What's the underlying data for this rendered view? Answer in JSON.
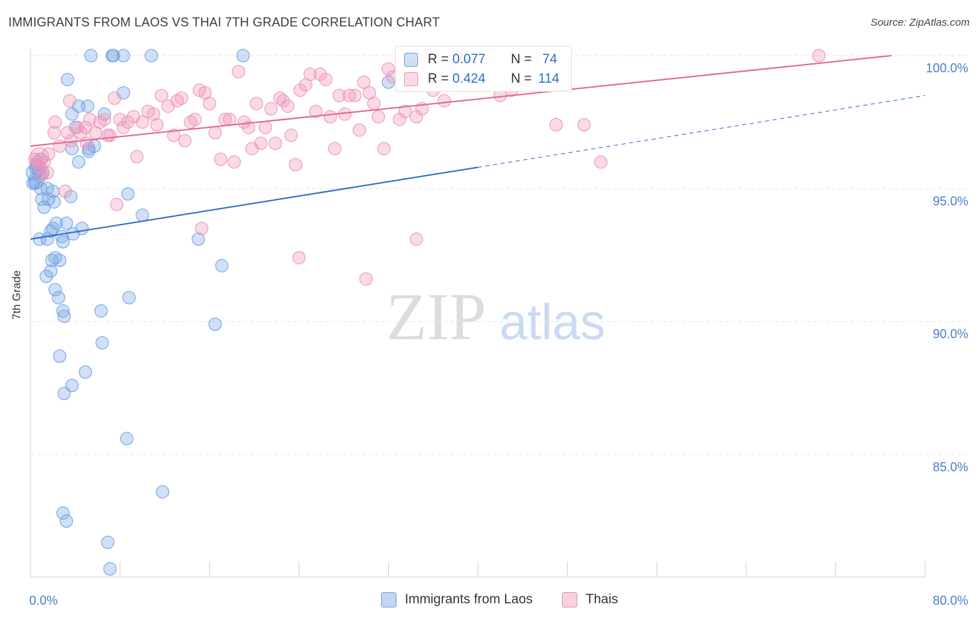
{
  "title": "IMMIGRANTS FROM LAOS VS THAI 7TH GRADE CORRELATION CHART",
  "source": "Source: ZipAtlas.com",
  "watermark": {
    "zip": "ZIP",
    "atlas": "atlas"
  },
  "colors": {
    "laos_fill": "rgba(120,165,230,0.35)",
    "laos_stroke": "#6f9fe0",
    "laos_line": "#2e6fc4",
    "thai_fill": "rgba(240,150,185,0.35)",
    "thai_stroke": "#ee8fb3",
    "thai_line": "#e2688f",
    "axis_text": "#4a7fc9"
  },
  "legend_top": [
    {
      "r_label": "R = ",
      "r_value": "0.077",
      "n_label": "N = ",
      "n_value": "74"
    },
    {
      "r_label": "R = ",
      "r_value": "0.424",
      "n_label": "N = ",
      "n_value": "114"
    }
  ],
  "legend_bottom": [
    "Immigrants from Laos",
    "Thais"
  ],
  "chart_data": {
    "type": "scatter",
    "title": "IMMIGRANTS FROM LAOS VS THAI 7TH GRADE CORRELATION CHART",
    "xlabel": "",
    "ylabel": "7th Grade",
    "xlim": [
      0,
      80
    ],
    "ylim": [
      80.5,
      100.5
    ],
    "x_ticks": [
      "0.0%",
      "80.0%"
    ],
    "y_ticks": [
      {
        "value": 100,
        "label": "100.0%"
      },
      {
        "value": 95,
        "label": "95.0%"
      },
      {
        "value": 90,
        "label": "90.0%"
      },
      {
        "value": 85,
        "label": "85.0%"
      }
    ],
    "series": [
      {
        "name": "Immigrants from Laos",
        "R": 0.077,
        "N": 74,
        "trend": {
          "x": [
            0,
            40
          ],
          "y": [
            93.1,
            95.8
          ],
          "dashed_to": {
            "x": 80,
            "y": 98.5
          }
        },
        "points": [
          [
            0.3,
            95.6
          ],
          [
            0.5,
            95.3
          ],
          [
            0.6,
            95.8
          ],
          [
            0.8,
            95.5
          ],
          [
            0.4,
            95.2
          ],
          [
            0.7,
            95.7
          ],
          [
            0.9,
            95.0
          ],
          [
            1.0,
            94.6
          ],
          [
            1.2,
            94.3
          ],
          [
            1.5,
            95.0
          ],
          [
            1.6,
            94.6
          ],
          [
            2.0,
            94.9
          ],
          [
            2.1,
            94.5
          ],
          [
            2.3,
            93.7
          ],
          [
            0.8,
            93.1
          ],
          [
            1.5,
            93.1
          ],
          [
            1.8,
            93.4
          ],
          [
            2.0,
            93.5
          ],
          [
            2.8,
            93.2
          ],
          [
            3.2,
            93.7
          ],
          [
            3.8,
            93.3
          ],
          [
            4.6,
            93.5
          ],
          [
            2.9,
            93.0
          ],
          [
            1.9,
            92.3
          ],
          [
            2.6,
            92.3
          ],
          [
            2.2,
            92.4
          ],
          [
            1.4,
            91.7
          ],
          [
            1.8,
            91.9
          ],
          [
            2.5,
            90.9
          ],
          [
            2.2,
            91.2
          ],
          [
            2.9,
            90.4
          ],
          [
            3.0,
            90.2
          ],
          [
            6.3,
            90.4
          ],
          [
            8.8,
            90.9
          ],
          [
            6.4,
            89.2
          ],
          [
            2.6,
            88.7
          ],
          [
            4.9,
            88.1
          ],
          [
            3.7,
            87.6
          ],
          [
            3.0,
            87.3
          ],
          [
            8.6,
            85.6
          ],
          [
            11.8,
            83.6
          ],
          [
            2.9,
            82.8
          ],
          [
            3.2,
            82.5
          ],
          [
            6.9,
            81.7
          ],
          [
            7.1,
            80.7
          ],
          [
            3.3,
            99.1
          ],
          [
            4.3,
            98.1
          ],
          [
            3.7,
            97.8
          ],
          [
            5.1,
            98.1
          ],
          [
            6.6,
            97.8
          ],
          [
            8.3,
            98.6
          ],
          [
            5.7,
            96.6
          ],
          [
            5.2,
            96.5
          ],
          [
            4.3,
            96.0
          ],
          [
            3.7,
            96.5
          ],
          [
            5.2,
            96.4
          ],
          [
            8.7,
            94.8
          ],
          [
            10.0,
            94.0
          ],
          [
            15.0,
            93.1
          ],
          [
            17.1,
            92.1
          ],
          [
            16.5,
            89.9
          ],
          [
            5.4,
            100.0
          ],
          [
            7.3,
            100.0
          ],
          [
            7.4,
            100.0
          ],
          [
            8.3,
            100.0
          ],
          [
            10.8,
            100.0
          ],
          [
            19.0,
            100.0
          ],
          [
            32.0,
            99.0
          ],
          [
            0.5,
            95.9
          ],
          [
            1.1,
            95.6
          ],
          [
            0.2,
            95.2
          ],
          [
            3.6,
            94.7
          ],
          [
            0.9,
            96.1
          ],
          [
            4.0,
            97.3
          ]
        ]
      },
      {
        "name": "Thais",
        "R": 0.424,
        "N": 114,
        "trend": {
          "x": [
            0,
            77
          ],
          "y": [
            96.6,
            100.0
          ]
        },
        "points": [
          [
            0.8,
            96.2
          ],
          [
            1.2,
            96.0
          ],
          [
            1.5,
            95.6
          ],
          [
            2.1,
            97.1
          ],
          [
            2.6,
            96.6
          ],
          [
            3.3,
            97.1
          ],
          [
            3.6,
            96.8
          ],
          [
            4.2,
            97.3
          ],
          [
            4.5,
            97.1
          ],
          [
            5.0,
            96.7
          ],
          [
            5.3,
            97.6
          ],
          [
            5.8,
            97.1
          ],
          [
            6.2,
            97.5
          ],
          [
            6.6,
            97.6
          ],
          [
            7.1,
            97.0
          ],
          [
            7.5,
            98.4
          ],
          [
            8.0,
            97.6
          ],
          [
            8.3,
            97.3
          ],
          [
            8.7,
            97.5
          ],
          [
            9.2,
            97.7
          ],
          [
            9.5,
            96.2
          ],
          [
            10.0,
            97.5
          ],
          [
            10.5,
            97.9
          ],
          [
            11.0,
            97.8
          ],
          [
            11.3,
            97.4
          ],
          [
            11.7,
            98.5
          ],
          [
            12.3,
            98.1
          ],
          [
            12.8,
            97.0
          ],
          [
            13.1,
            98.3
          ],
          [
            13.5,
            98.4
          ],
          [
            13.8,
            96.8
          ],
          [
            14.3,
            97.5
          ],
          [
            14.7,
            97.6
          ],
          [
            15.1,
            98.7
          ],
          [
            15.6,
            98.6
          ],
          [
            16.0,
            98.2
          ],
          [
            16.5,
            97.1
          ],
          [
            17.0,
            96.1
          ],
          [
            17.4,
            97.6
          ],
          [
            17.8,
            97.6
          ],
          [
            18.2,
            96.0
          ],
          [
            18.6,
            99.4
          ],
          [
            19.1,
            97.5
          ],
          [
            19.5,
            97.3
          ],
          [
            19.8,
            96.5
          ],
          [
            20.2,
            98.2
          ],
          [
            20.6,
            96.7
          ],
          [
            21.0,
            97.3
          ],
          [
            21.5,
            98.0
          ],
          [
            21.9,
            96.7
          ],
          [
            22.3,
            98.4
          ],
          [
            22.6,
            98.3
          ],
          [
            23.0,
            98.1
          ],
          [
            23.3,
            97.0
          ],
          [
            23.7,
            95.9
          ],
          [
            24.1,
            98.7
          ],
          [
            24.6,
            98.9
          ],
          [
            25.0,
            99.3
          ],
          [
            25.5,
            97.9
          ],
          [
            25.9,
            99.3
          ],
          [
            26.4,
            99.1
          ],
          [
            26.8,
            97.7
          ],
          [
            27.2,
            96.5
          ],
          [
            27.6,
            98.5
          ],
          [
            28.1,
            97.8
          ],
          [
            28.5,
            98.5
          ],
          [
            29.0,
            98.5
          ],
          [
            29.4,
            97.2
          ],
          [
            29.8,
            99.0
          ],
          [
            30.3,
            98.6
          ],
          [
            30.7,
            98.2
          ],
          [
            31.1,
            97.7
          ],
          [
            31.6,
            96.5
          ],
          [
            32.0,
            99.5
          ],
          [
            32.4,
            99.2
          ],
          [
            33.0,
            97.6
          ],
          [
            33.5,
            97.9
          ],
          [
            34.0,
            99.6
          ],
          [
            34.5,
            97.7
          ],
          [
            35.0,
            98.0
          ],
          [
            35.4,
            100.0
          ],
          [
            36.0,
            98.7
          ],
          [
            36.5,
            99.2
          ],
          [
            37.0,
            98.3
          ],
          [
            37.5,
            99.7
          ],
          [
            38.0,
            99.5
          ],
          [
            38.5,
            100.0
          ],
          [
            39.0,
            99.8
          ],
          [
            39.5,
            99.4
          ],
          [
            40.0,
            99.1
          ],
          [
            41.0,
            100.0
          ],
          [
            42.0,
            98.5
          ],
          [
            43.0,
            98.7
          ],
          [
            44.0,
            99.0
          ],
          [
            45.0,
            100.0
          ],
          [
            47.0,
            97.4
          ],
          [
            49.5,
            97.4
          ],
          [
            51.0,
            96.0
          ],
          [
            70.5,
            100.0
          ],
          [
            30.0,
            91.6
          ],
          [
            24.0,
            92.4
          ],
          [
            34.5,
            93.1
          ],
          [
            15.3,
            93.5
          ],
          [
            7.7,
            94.4
          ],
          [
            3.1,
            94.9
          ],
          [
            0.4,
            96.1
          ],
          [
            0.9,
            95.8
          ],
          [
            1.6,
            96.3
          ],
          [
            2.2,
            97.5
          ],
          [
            3.5,
            98.3
          ],
          [
            4.9,
            97.3
          ],
          [
            6.9,
            97.0
          ],
          [
            0.6,
            96.0
          ],
          [
            1.0,
            95.5
          ]
        ]
      }
    ]
  }
}
